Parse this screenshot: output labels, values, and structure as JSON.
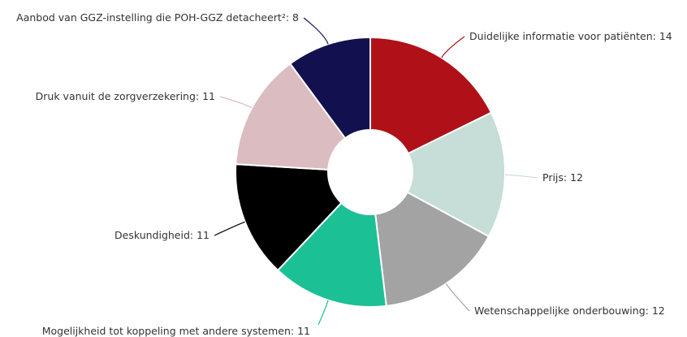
{
  "chart_data": {
    "type": "donut",
    "categories": [
      "Duidelijke informatie voor patiënten",
      "Prijs",
      "Wetenschappelijke onderbouwing",
      "Mogelijkheid tot koppeling met andere systemen",
      "Deskundigheid",
      "Druk vanuit de zorgverzekering",
      "Aanbod van GGZ-instelling die POH-GGZ detacheert²"
    ],
    "values": [
      14,
      12,
      12,
      11,
      11,
      11,
      8
    ],
    "colors": [
      "#b01017",
      "#c7ddd7",
      "#a3a3a3",
      "#1bc194",
      "#000000",
      "#dbbcc0",
      "#13104f"
    ],
    "label_separator": ": "
  }
}
